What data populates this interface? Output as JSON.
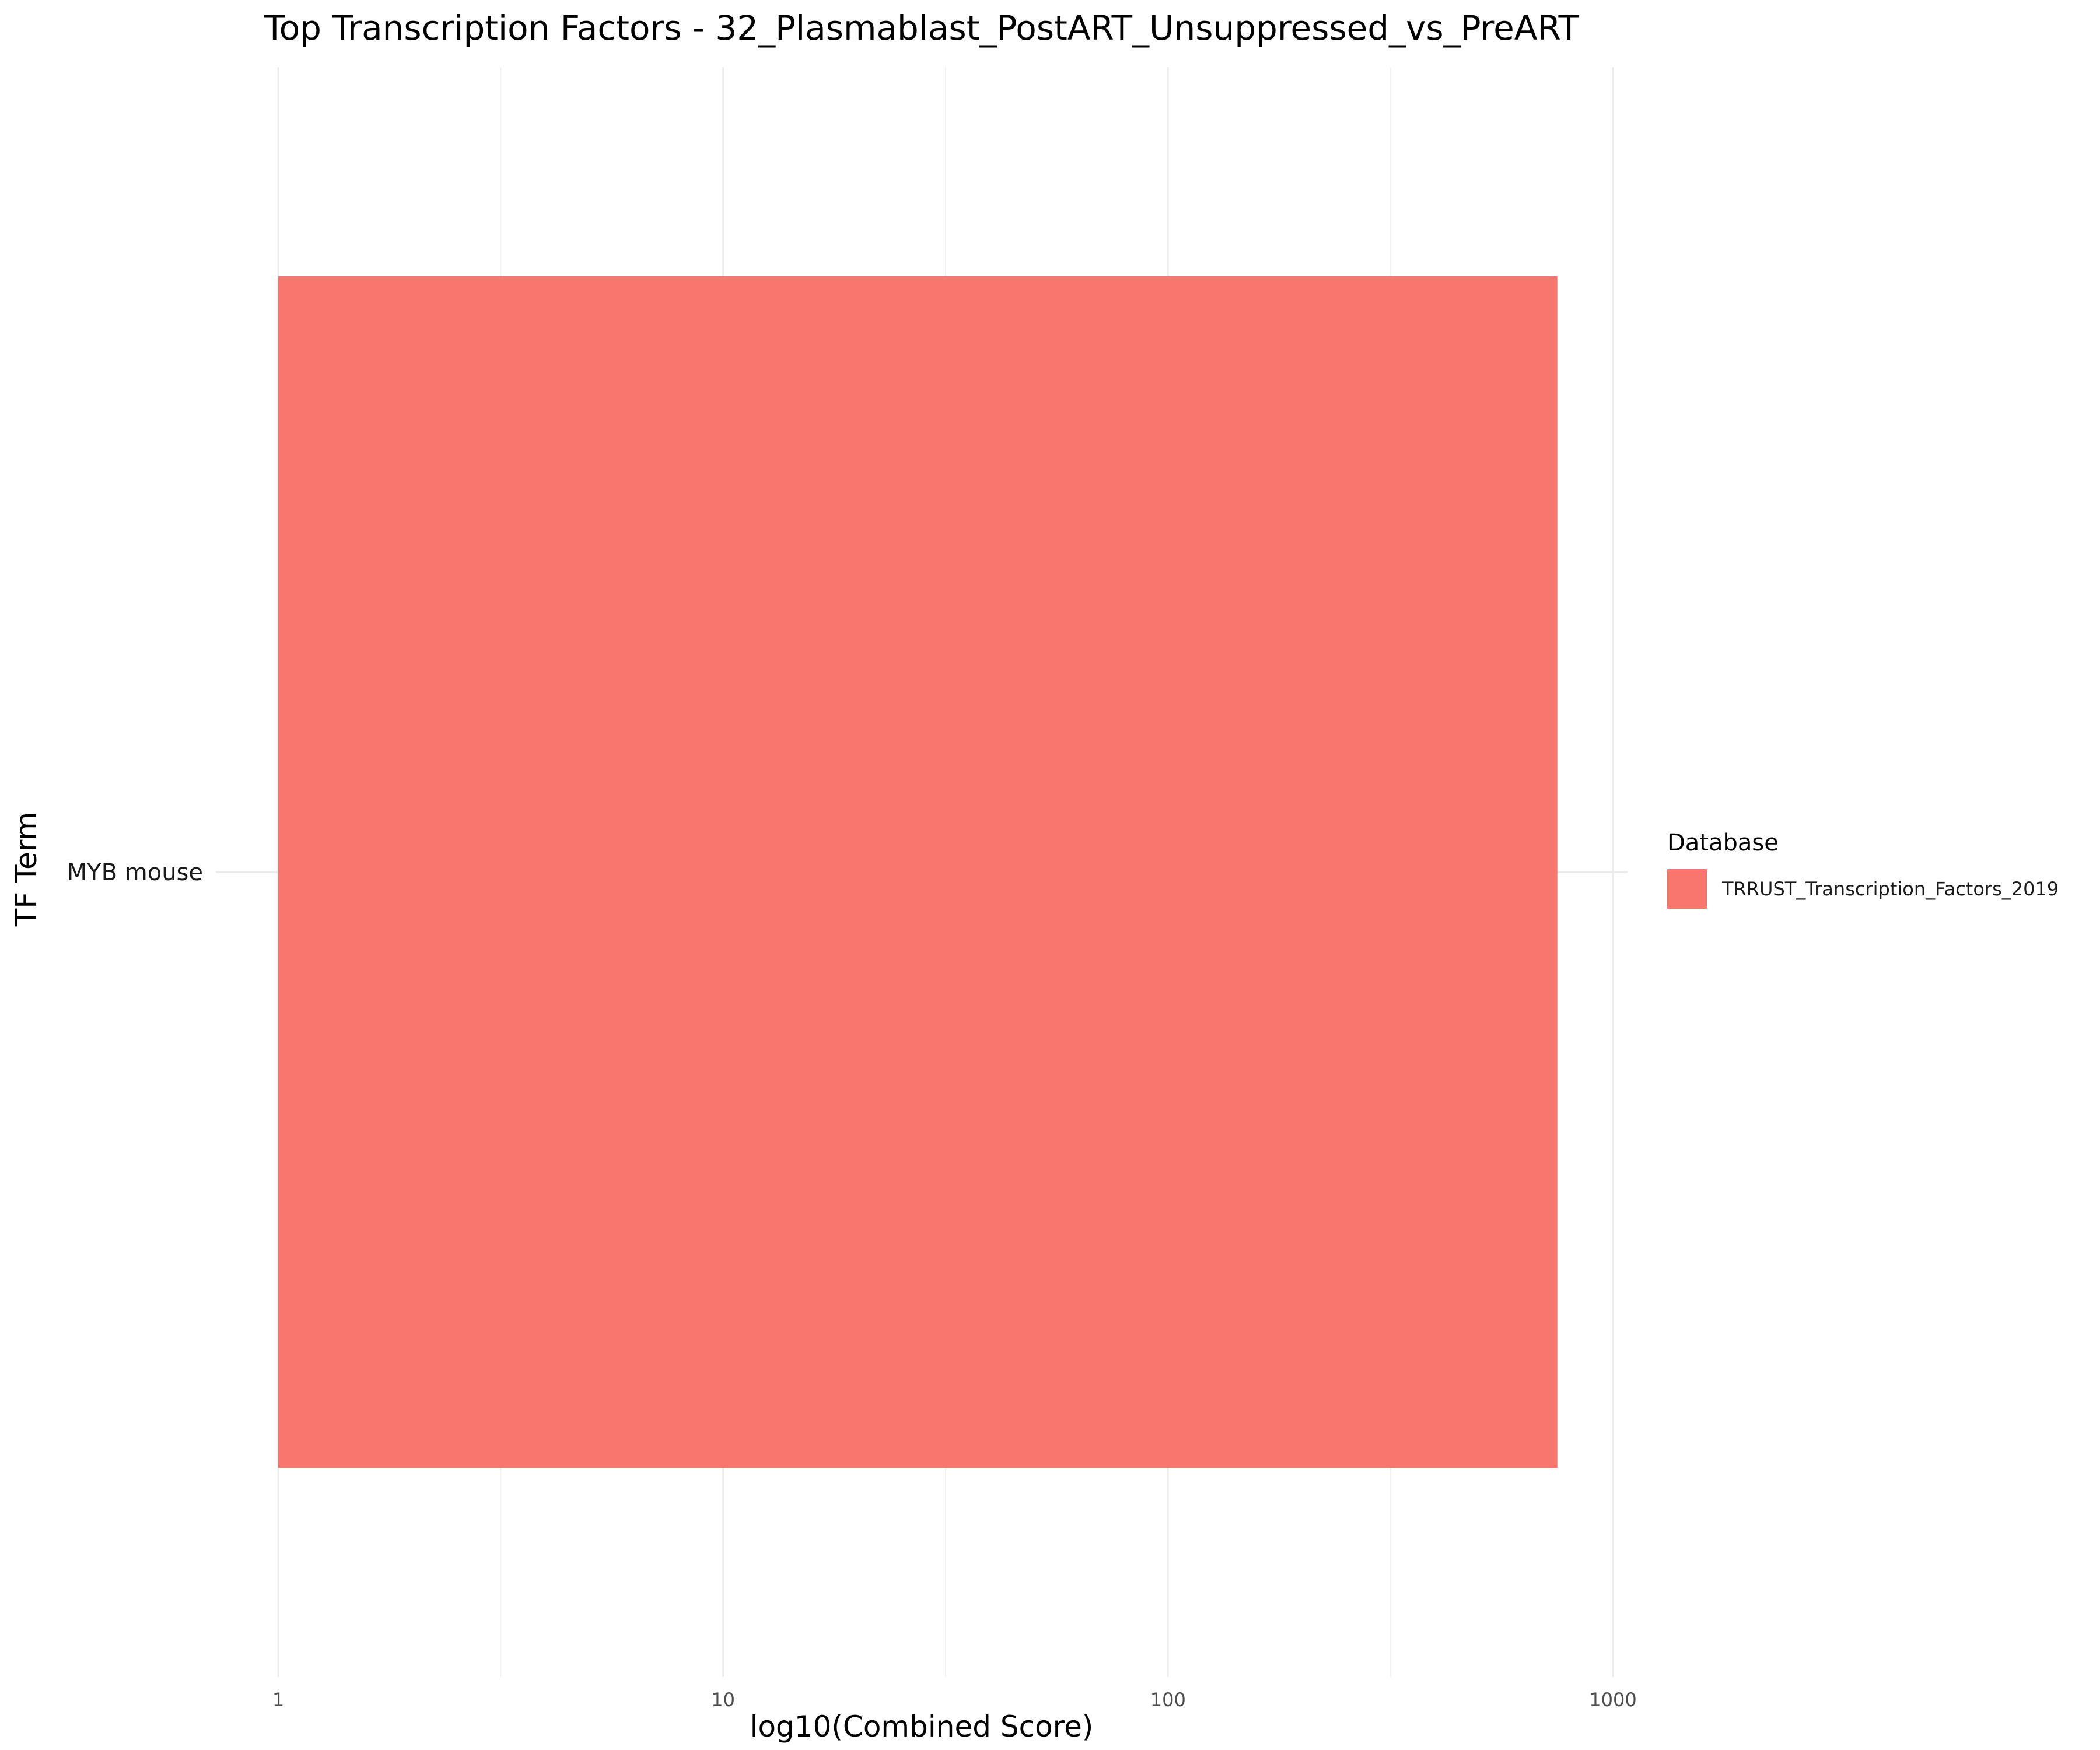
{
  "chart_data": {
    "type": "bar",
    "orientation": "horizontal",
    "title": "Top Transcription Factors - 32_Plasmablast_PostART_Unsuppressed_vs_PreART",
    "xlabel": "log10(Combined Score)",
    "ylabel": "TF Term",
    "x_scale": "log10",
    "xlim": [
      1,
      1000
    ],
    "x_ticks": [
      "1",
      "10",
      "100",
      "1000"
    ],
    "grid": true,
    "categories": [
      "MYB mouse"
    ],
    "series": [
      {
        "name": "TRRUST_Transcription_Factors_2019",
        "values": [
          750
        ],
        "color": "#F8766D"
      }
    ],
    "legend": {
      "title": "Database",
      "placement": "right",
      "entries": [
        {
          "label": "TRRUST_Transcription_Factors_2019",
          "color": "#F8766D"
        }
      ]
    }
  }
}
